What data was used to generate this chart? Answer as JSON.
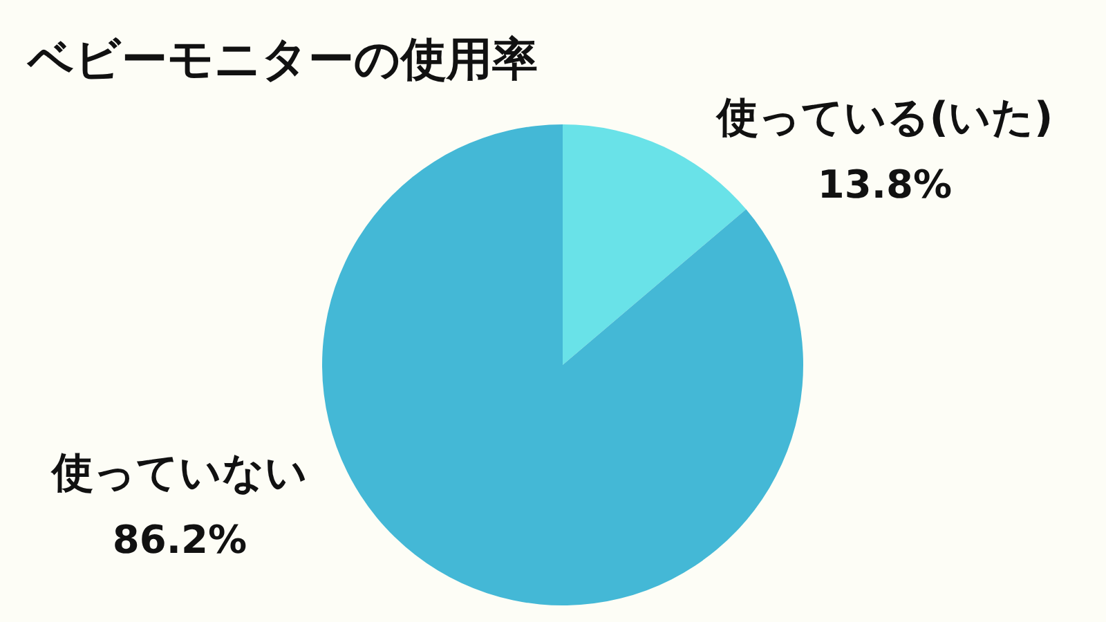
{
  "chart_data": {
    "type": "pie",
    "title": "ベビーモニターの使用率",
    "categories": [
      "使っている(いた)",
      "使っていない"
    ],
    "values": [
      13.8,
      86.2
    ],
    "value_labels": [
      "13.8%",
      "86.2%"
    ],
    "colors": [
      "#69e2e8",
      "#44b8d6"
    ],
    "legend": false
  }
}
